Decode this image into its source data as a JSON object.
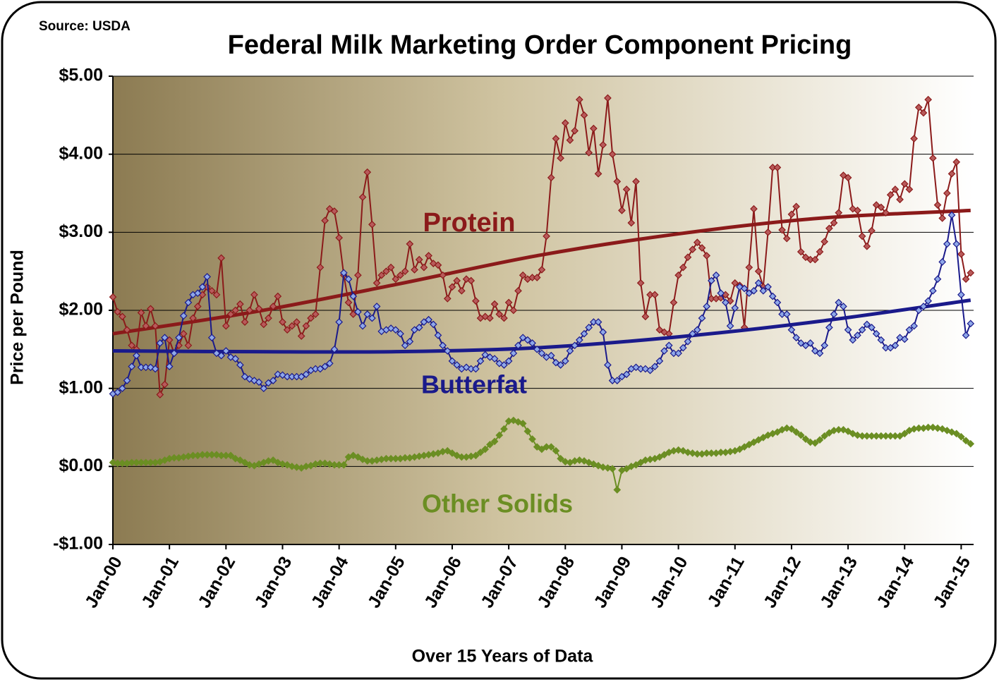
{
  "chart_data": {
    "type": "line",
    "title": "Federal Milk Marketing Order Component Pricing",
    "source": "Source: USDA",
    "y_label": "Price per Pound",
    "x_label": "Over 15 Years of Data",
    "categories": [
      "Jan-00",
      null,
      null,
      null,
      null,
      null,
      null,
      null,
      null,
      null,
      null,
      null,
      "Jan-01",
      null,
      null,
      null,
      null,
      null,
      null,
      null,
      null,
      null,
      null,
      null,
      "Jan-02",
      null,
      null,
      null,
      null,
      null,
      null,
      null,
      null,
      null,
      null,
      null,
      "Jan-03",
      null,
      null,
      null,
      null,
      null,
      null,
      null,
      null,
      null,
      null,
      null,
      "Jan-04",
      null,
      null,
      null,
      null,
      null,
      null,
      null,
      null,
      null,
      null,
      null,
      "Jan-05",
      null,
      null,
      null,
      null,
      null,
      null,
      null,
      null,
      null,
      null,
      null,
      "Jan-06",
      null,
      null,
      null,
      null,
      null,
      null,
      null,
      null,
      null,
      null,
      null,
      "Jan-07",
      null,
      null,
      null,
      null,
      null,
      null,
      null,
      null,
      null,
      null,
      null,
      "Jan-08",
      null,
      null,
      null,
      null,
      null,
      null,
      null,
      null,
      null,
      null,
      null,
      "Jan-09",
      null,
      null,
      null,
      null,
      null,
      null,
      null,
      null,
      null,
      null,
      null,
      "Jan-10",
      null,
      null,
      null,
      null,
      null,
      null,
      null,
      null,
      null,
      null,
      null,
      "Jan-11",
      null,
      null,
      null,
      null,
      null,
      null,
      null,
      null,
      null,
      null,
      null,
      "Jan-12",
      null,
      null,
      null,
      null,
      null,
      null,
      null,
      null,
      null,
      null,
      null,
      "Jan-13",
      null,
      null,
      null,
      null,
      null,
      null,
      null,
      null,
      null,
      null,
      null,
      "Jan-14",
      null,
      null,
      null,
      null,
      null,
      null,
      null,
      null,
      null,
      null,
      null,
      "Jan-15",
      null,
      null
    ],
    "ylim": [
      -1,
      5
    ],
    "yticks": [
      {
        "value": -1,
        "label": "-$1.00"
      },
      {
        "value": 0,
        "label": "$0.00"
      },
      {
        "value": 1,
        "label": "$1.00"
      },
      {
        "value": 2,
        "label": "$2.00"
      },
      {
        "value": 3,
        "label": "$3.00"
      },
      {
        "value": 4,
        "label": "$4.00"
      },
      {
        "value": 5,
        "label": "$5.00"
      }
    ],
    "grid": true,
    "series": [
      {
        "name": "Protein",
        "color": "#8b1a1a",
        "marker_fill": "#b85a5a",
        "values": [
          2.17,
          1.98,
          1.92,
          1.75,
          1.55,
          1.5,
          1.97,
          1.8,
          2.02,
          1.8,
          0.92,
          1.05,
          1.62,
          1.45,
          1.55,
          1.7,
          1.55,
          1.9,
          2.05,
          2.2,
          2.3,
          2.25,
          2.2,
          2.67,
          1.8,
          1.95,
          2.0,
          2.08,
          1.85,
          2.0,
          2.2,
          2.02,
          1.82,
          1.9,
          2.05,
          2.18,
          1.85,
          1.75,
          1.8,
          1.85,
          1.67,
          1.8,
          1.9,
          1.95,
          2.55,
          3.15,
          3.3,
          3.27,
          2.93,
          2.45,
          2.1,
          1.95,
          2.45,
          3.45,
          3.77,
          3.1,
          2.35,
          2.45,
          2.5,
          2.55,
          2.4,
          2.45,
          2.5,
          2.85,
          2.52,
          2.65,
          2.55,
          2.7,
          2.6,
          2.58,
          2.45,
          2.15,
          2.3,
          2.38,
          2.25,
          2.4,
          2.38,
          2.12,
          1.9,
          1.92,
          1.9,
          2.08,
          1.95,
          1.9,
          2.1,
          2.0,
          2.25,
          2.45,
          2.4,
          2.42,
          2.42,
          2.52,
          2.95,
          3.7,
          4.2,
          3.95,
          4.4,
          4.18,
          4.3,
          4.7,
          4.5,
          4.02,
          4.33,
          3.75,
          4.12,
          4.72,
          4.0,
          3.65,
          3.28,
          3.55,
          3.12,
          3.65,
          2.35,
          1.92,
          2.2,
          2.2,
          1.75,
          1.72,
          1.7,
          2.1,
          2.45,
          2.55,
          2.68,
          2.78,
          2.87,
          2.8,
          2.7,
          2.15,
          2.15,
          2.16,
          2.2,
          2.12,
          2.35,
          2.32,
          1.78,
          2.55,
          3.3,
          2.5,
          2.3,
          3.0,
          3.83,
          3.83,
          3.03,
          2.92,
          3.23,
          3.33,
          2.75,
          2.68,
          2.65,
          2.65,
          2.75,
          2.88,
          3.05,
          3.12,
          3.25,
          3.73,
          3.7,
          3.3,
          3.28,
          2.95,
          2.82,
          3.02,
          3.35,
          3.32,
          3.25,
          3.48,
          3.55,
          3.42,
          3.62,
          3.55,
          4.2,
          4.6,
          4.53,
          4.7,
          3.95,
          3.35,
          3.18,
          3.5,
          3.75,
          3.9,
          2.72,
          2.4,
          2.48
        ],
        "trend": {
          "x": [
            0,
            30,
            60,
            90,
            120,
            150,
            182
          ],
          "values": [
            1.7,
            1.98,
            2.33,
            2.7,
            2.98,
            3.18,
            3.28
          ]
        }
      },
      {
        "name": "Butterfat",
        "color": "#1a1a8b",
        "marker_fill": "#8fa8e8",
        "values": [
          0.93,
          0.95,
          1.0,
          1.1,
          1.28,
          1.42,
          1.27,
          1.27,
          1.27,
          1.25,
          1.58,
          1.65,
          1.28,
          1.45,
          1.65,
          1.93,
          2.1,
          2.2,
          2.22,
          2.3,
          2.43,
          1.65,
          1.45,
          1.42,
          1.48,
          1.4,
          1.38,
          1.3,
          1.15,
          1.12,
          1.1,
          1.08,
          1.0,
          1.07,
          1.1,
          1.18,
          1.17,
          1.15,
          1.15,
          1.15,
          1.15,
          1.18,
          1.23,
          1.25,
          1.25,
          1.28,
          1.32,
          1.5,
          1.85,
          2.48,
          2.4,
          2.18,
          1.98,
          1.8,
          1.95,
          1.9,
          2.05,
          1.73,
          1.75,
          1.77,
          1.75,
          1.7,
          1.55,
          1.6,
          1.75,
          1.78,
          1.85,
          1.88,
          1.82,
          1.68,
          1.55,
          1.48,
          1.35,
          1.3,
          1.25,
          1.27,
          1.25,
          1.25,
          1.35,
          1.43,
          1.4,
          1.38,
          1.32,
          1.3,
          1.35,
          1.45,
          1.55,
          1.65,
          1.62,
          1.58,
          1.5,
          1.45,
          1.4,
          1.42,
          1.33,
          1.3,
          1.35,
          1.48,
          1.55,
          1.62,
          1.7,
          1.78,
          1.85,
          1.85,
          1.72,
          1.3,
          1.1,
          1.1,
          1.15,
          1.18,
          1.25,
          1.27,
          1.25,
          1.25,
          1.23,
          1.28,
          1.35,
          1.48,
          1.55,
          1.45,
          1.45,
          1.52,
          1.6,
          1.7,
          1.75,
          1.9,
          2.05,
          2.38,
          2.45,
          2.22,
          2.1,
          1.8,
          2.03,
          2.3,
          2.28,
          2.22,
          2.25,
          2.35,
          2.25,
          2.3,
          2.18,
          2.1,
          1.95,
          1.95,
          1.75,
          1.65,
          1.58,
          1.55,
          1.58,
          1.48,
          1.45,
          1.55,
          1.78,
          1.95,
          2.1,
          2.05,
          1.75,
          1.62,
          1.68,
          1.75,
          1.82,
          1.78,
          1.7,
          1.62,
          1.52,
          1.52,
          1.55,
          1.65,
          1.63,
          1.75,
          1.8,
          2.0,
          2.05,
          2.12,
          2.25,
          2.4,
          2.62,
          2.85,
          3.22,
          2.85,
          2.2,
          1.68,
          1.83
        ],
        "trend": {
          "x": [
            0,
            30,
            60,
            90,
            120,
            150,
            182
          ],
          "values": [
            1.48,
            1.47,
            1.47,
            1.52,
            1.66,
            1.86,
            2.13
          ]
        }
      },
      {
        "name": "Other Solids",
        "color": "#6b8e23",
        "marker_fill": "#6b8e23",
        "values": [
          0.05,
          0.04,
          0.04,
          0.04,
          0.05,
          0.05,
          0.05,
          0.05,
          0.05,
          0.05,
          0.06,
          0.08,
          0.1,
          0.11,
          0.11,
          0.12,
          0.13,
          0.14,
          0.14,
          0.15,
          0.15,
          0.15,
          0.15,
          0.14,
          0.14,
          0.14,
          0.1,
          0.08,
          0.05,
          0.02,
          0.01,
          0.03,
          0.05,
          0.07,
          0.08,
          0.05,
          0.03,
          0.02,
          0.0,
          -0.01,
          -0.02,
          0.0,
          0.01,
          0.03,
          0.04,
          0.04,
          0.03,
          0.02,
          0.02,
          0.02,
          0.12,
          0.14,
          0.12,
          0.09,
          0.07,
          0.07,
          0.08,
          0.09,
          0.1,
          0.1,
          0.1,
          0.1,
          0.11,
          0.11,
          0.12,
          0.13,
          0.14,
          0.15,
          0.16,
          0.17,
          0.19,
          0.2,
          0.17,
          0.14,
          0.12,
          0.12,
          0.13,
          0.14,
          0.18,
          0.22,
          0.28,
          0.32,
          0.4,
          0.48,
          0.58,
          0.59,
          0.57,
          0.55,
          0.45,
          0.35,
          0.25,
          0.22,
          0.25,
          0.25,
          0.2,
          0.1,
          0.06,
          0.05,
          0.07,
          0.08,
          0.07,
          0.05,
          0.03,
          0.01,
          -0.01,
          -0.02,
          -0.03,
          -0.3,
          -0.05,
          -0.03,
          0.0,
          0.02,
          0.05,
          0.08,
          0.09,
          0.1,
          0.12,
          0.15,
          0.18,
          0.2,
          0.21,
          0.2,
          0.18,
          0.17,
          0.16,
          0.16,
          0.17,
          0.17,
          0.17,
          0.18,
          0.18,
          0.19,
          0.2,
          0.22,
          0.25,
          0.28,
          0.31,
          0.34,
          0.37,
          0.4,
          0.42,
          0.44,
          0.47,
          0.49,
          0.48,
          0.44,
          0.4,
          0.35,
          0.31,
          0.3,
          0.34,
          0.39,
          0.43,
          0.46,
          0.47,
          0.47,
          0.45,
          0.42,
          0.4,
          0.39,
          0.39,
          0.39,
          0.39,
          0.39,
          0.39,
          0.39,
          0.39,
          0.39,
          0.42,
          0.46,
          0.48,
          0.49,
          0.49,
          0.5,
          0.5,
          0.49,
          0.48,
          0.46,
          0.44,
          0.42,
          0.38,
          0.33,
          0.29
        ]
      }
    ]
  }
}
